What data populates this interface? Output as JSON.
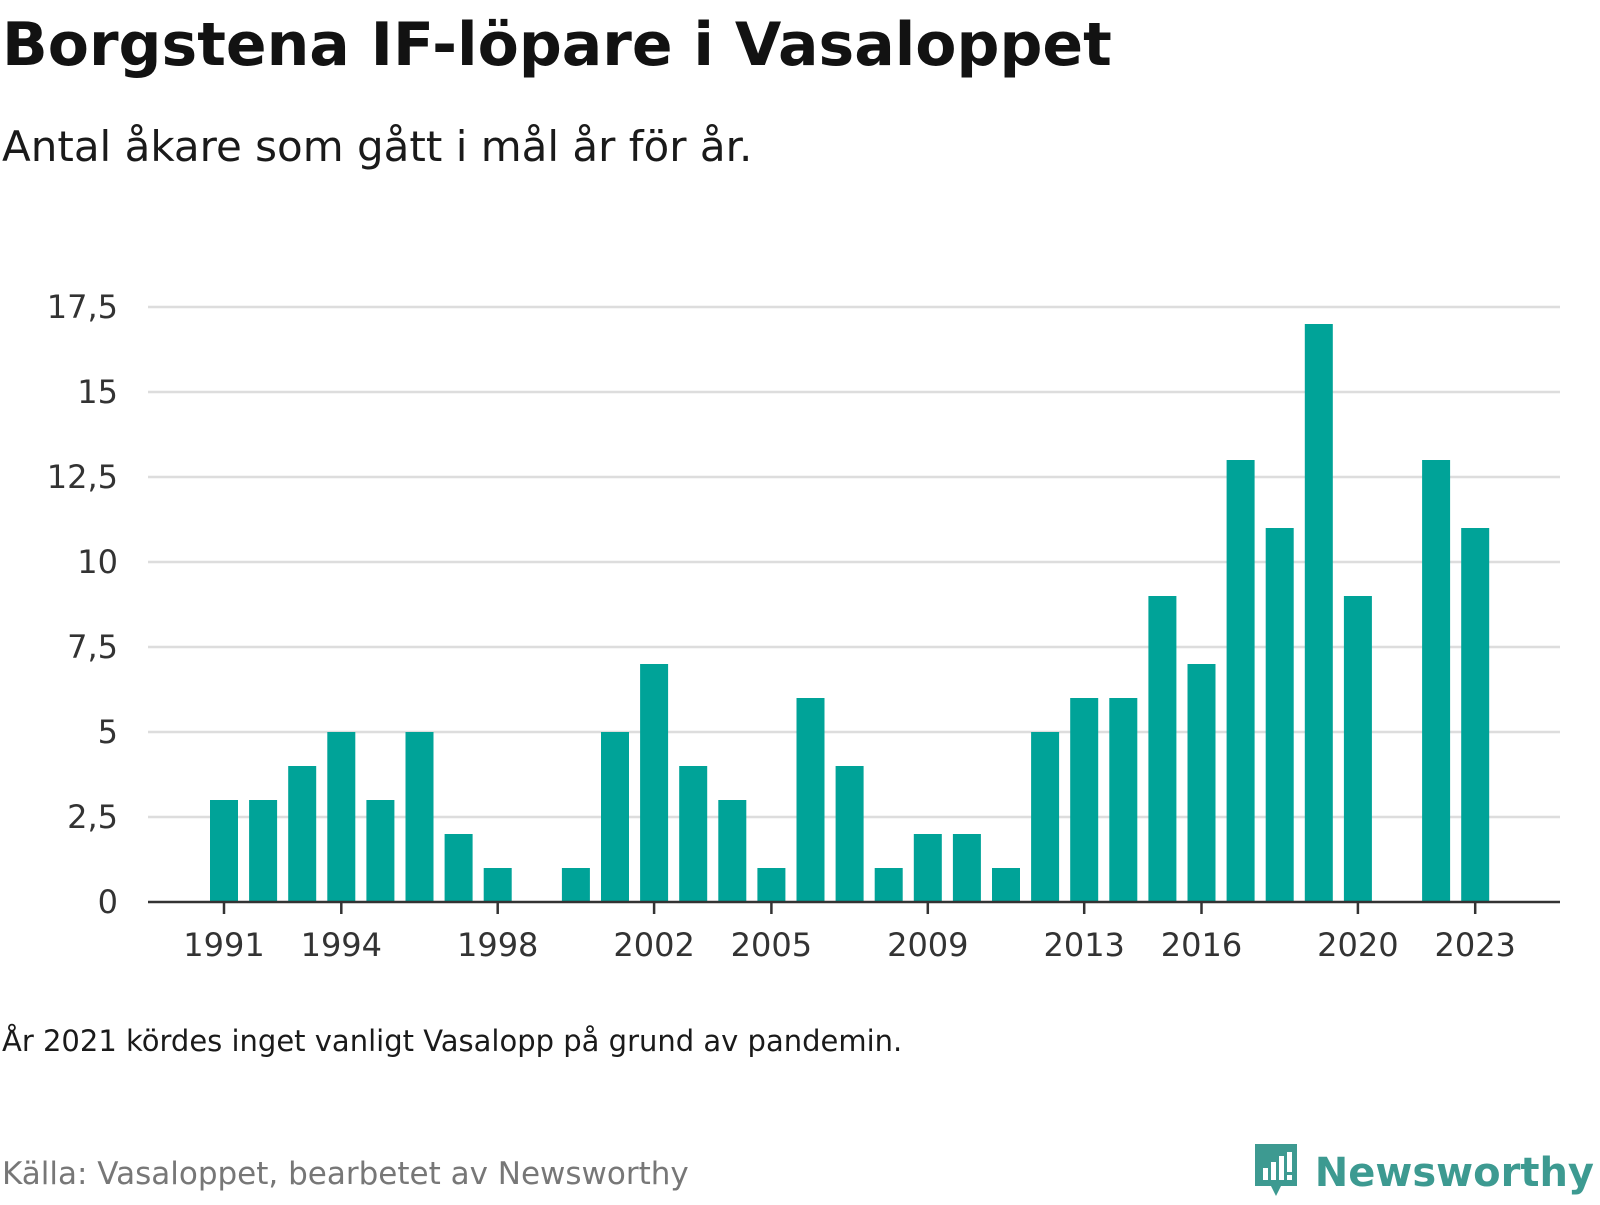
{
  "title": "Borgstena IF-löpare i Vasaloppet",
  "subtitle": "Antal åkare som gått i mål år för år.",
  "note": "År 2021 kördes inget vanligt Vasalopp på grund av pandemin.",
  "source": "Källa: Vasaloppet, bearbetet av Newsworthy",
  "brand": {
    "name": "Newsworthy",
    "icon": "newsworthy-logo-icon",
    "color": "#3d9a91"
  },
  "colors": {
    "bar": "#00a398",
    "grid": "#dddddd",
    "axis": "#333333"
  },
  "chart_data": {
    "type": "bar",
    "title": "Borgstena IF-löpare i Vasaloppet",
    "subtitle": "Antal åkare som gått i mål år för år.",
    "xlabel": "",
    "ylabel": "",
    "ylim": [
      0,
      17.5
    ],
    "yticks": [
      0,
      2.5,
      5,
      7.5,
      10,
      12.5,
      15,
      17.5
    ],
    "ytick_labels": [
      "0",
      "2,5",
      "5",
      "7,5",
      "10",
      "12,5",
      "15",
      "17,5"
    ],
    "xtick_labels": [
      "1991",
      "1994",
      "1998",
      "2002",
      "2005",
      "2009",
      "2013",
      "2016",
      "2020",
      "2023"
    ],
    "grid": true,
    "categories": [
      "1991",
      "1992",
      "1993",
      "1994",
      "1995",
      "1996",
      "1997",
      "1998",
      "1999",
      "2000",
      "2001",
      "2002",
      "2003",
      "2004",
      "2005",
      "2006",
      "2007",
      "2008",
      "2009",
      "2010",
      "2011",
      "2012",
      "2013",
      "2014",
      "2015",
      "2016",
      "2017",
      "2018",
      "2019",
      "2020",
      "2021",
      "2022",
      "2023"
    ],
    "values": [
      3,
      3,
      4,
      5,
      3,
      5,
      2,
      1,
      0,
      1,
      5,
      7,
      4,
      3,
      1,
      6,
      4,
      1,
      2,
      2,
      1,
      5,
      6,
      6,
      9,
      7,
      13,
      11,
      17,
      9,
      0,
      13,
      11
    ]
  }
}
